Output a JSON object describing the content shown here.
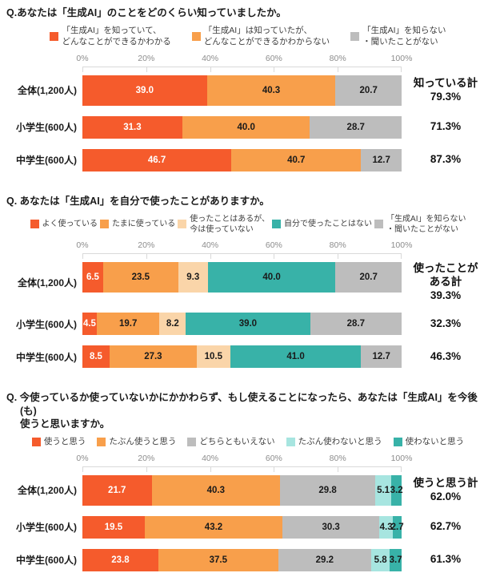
{
  "axis": {
    "ticks": [
      "0%",
      "20%",
      "40%",
      "60%",
      "80%",
      "100%"
    ]
  },
  "colors": {
    "strong_orange": "#F55B2C",
    "orange": "#F89F4B",
    "peach": "#FAD5A9",
    "teal": "#38B2A8",
    "light_teal": "#A7E5E0",
    "gray": "#BDBDBD",
    "axis_text": "#8C8C8C",
    "ruler_line": "#D9D9D9",
    "value_dark": "#1A1A1A",
    "value_light": "#FFFFFF"
  },
  "chart_data": [
    {
      "type": "bar",
      "stacked": true,
      "orientation": "horizontal",
      "xlim": [
        0,
        100
      ],
      "x_ticks": [
        "0%",
        "20%",
        "40%",
        "60%",
        "80%",
        "100%"
      ],
      "title": "Q.あなたは「生成AI」のことをどのくらい知っていましたか。",
      "categories": [
        "全体(1,200人)",
        "小学生(600人)",
        "中学生(600人)"
      ],
      "series": [
        {
          "name": "「生成AI」を知っていて、どんなことができるかわかる",
          "legend_label": "「生成AI」を知っていて、\nどんなことができるかわかる",
          "color": "#F55B2C",
          "value_color": "#FFFFFF",
          "values": [
            39.0,
            31.3,
            46.7
          ]
        },
        {
          "name": "「生成AI」は知っていたが、どんなことができるかわからない",
          "legend_label": "「生成AI」は知っていたが、\nどんなことができるかわからない",
          "color": "#F89F4B",
          "value_color": "#1A1A1A",
          "values": [
            40.3,
            40.0,
            40.7
          ]
        },
        {
          "name": "「生成AI」を知らない・聞いたことがない",
          "legend_label": "「生成AI」を知らない\n・聞いたことがない",
          "color": "#BDBDBD",
          "value_color": "#1A1A1A",
          "values": [
            20.7,
            28.7,
            12.7
          ]
        }
      ],
      "total": {
        "header": "知っている計",
        "values": [
          "79.3%",
          "71.3%",
          "87.3%"
        ]
      }
    },
    {
      "type": "bar",
      "stacked": true,
      "orientation": "horizontal",
      "xlim": [
        0,
        100
      ],
      "x_ticks": [
        "0%",
        "20%",
        "40%",
        "60%",
        "80%",
        "100%"
      ],
      "title": "Q. あなたは「生成AI」を自分で使ったことがありますか。",
      "categories": [
        "全体(1,200人)",
        "小学生(600人)",
        "中学生(600人)"
      ],
      "series": [
        {
          "name": "よく使っている",
          "legend_label": "よく使っている",
          "color": "#F55B2C",
          "value_color": "#FFFFFF",
          "values": [
            6.5,
            4.5,
            8.5
          ]
        },
        {
          "name": "たまに使っている",
          "legend_label": "たまに使っている",
          "color": "#F89F4B",
          "value_color": "#1A1A1A",
          "values": [
            23.5,
            19.7,
            27.3
          ]
        },
        {
          "name": "使ったことはあるが、今は使っていない",
          "legend_label": "使ったことはあるが、\n今は使っていない",
          "color": "#FAD5A9",
          "value_color": "#1A1A1A",
          "values": [
            9.3,
            8.2,
            10.5
          ]
        },
        {
          "name": "自分で使ったことはない",
          "legend_label": "自分で使ったことはない",
          "color": "#38B2A8",
          "value_color": "#1A1A1A",
          "values": [
            40.0,
            39.0,
            41.0
          ]
        },
        {
          "name": "「生成AI」を知らない・聞いたことがない",
          "legend_label": "「生成AI」を知らない\n・聞いたことがない",
          "color": "#BDBDBD",
          "value_color": "#1A1A1A",
          "values": [
            20.7,
            28.7,
            12.7
          ]
        }
      ],
      "total": {
        "header": "使ったことが\nある計",
        "values": [
          "39.3%",
          "32.3%",
          "46.3%"
        ]
      }
    },
    {
      "type": "bar",
      "stacked": true,
      "orientation": "horizontal",
      "xlim": [
        0,
        100
      ],
      "x_ticks": [
        "0%",
        "20%",
        "40%",
        "60%",
        "80%",
        "100%"
      ],
      "title": "Q. 今使っているか使っていないかにかかわらず、もし使えることになったら、あなたは「生成AI」を今後(も)\n使うと思いますか。",
      "categories": [
        "全体(1,200人)",
        "小学生(600人)",
        "中学生(600人)"
      ],
      "series": [
        {
          "name": "使うと思う",
          "legend_label": "使うと思う",
          "color": "#F55B2C",
          "value_color": "#FFFFFF",
          "values": [
            21.7,
            19.5,
            23.8
          ]
        },
        {
          "name": "たぶん使うと思う",
          "legend_label": "たぶん使うと思う",
          "color": "#F89F4B",
          "value_color": "#1A1A1A",
          "values": [
            40.3,
            43.2,
            37.5
          ]
        },
        {
          "name": "どちらともいえない",
          "legend_label": "どちらともいえない",
          "color": "#BDBDBD",
          "value_color": "#1A1A1A",
          "values": [
            29.8,
            30.3,
            29.2
          ]
        },
        {
          "name": "たぶん使わないと思う",
          "legend_label": "たぶん使わないと思う",
          "color": "#A7E5E0",
          "value_color": "#1A1A1A",
          "values": [
            5.1,
            4.3,
            5.8
          ]
        },
        {
          "name": "使わないと思う",
          "legend_label": "使わないと思う",
          "color": "#38B2A8",
          "value_color": "#1A1A1A",
          "values": [
            3.2,
            2.7,
            3.7
          ]
        }
      ],
      "total": {
        "header": "使うと思う計",
        "values": [
          "62.0%",
          "62.7%",
          "61.3%"
        ]
      }
    }
  ]
}
